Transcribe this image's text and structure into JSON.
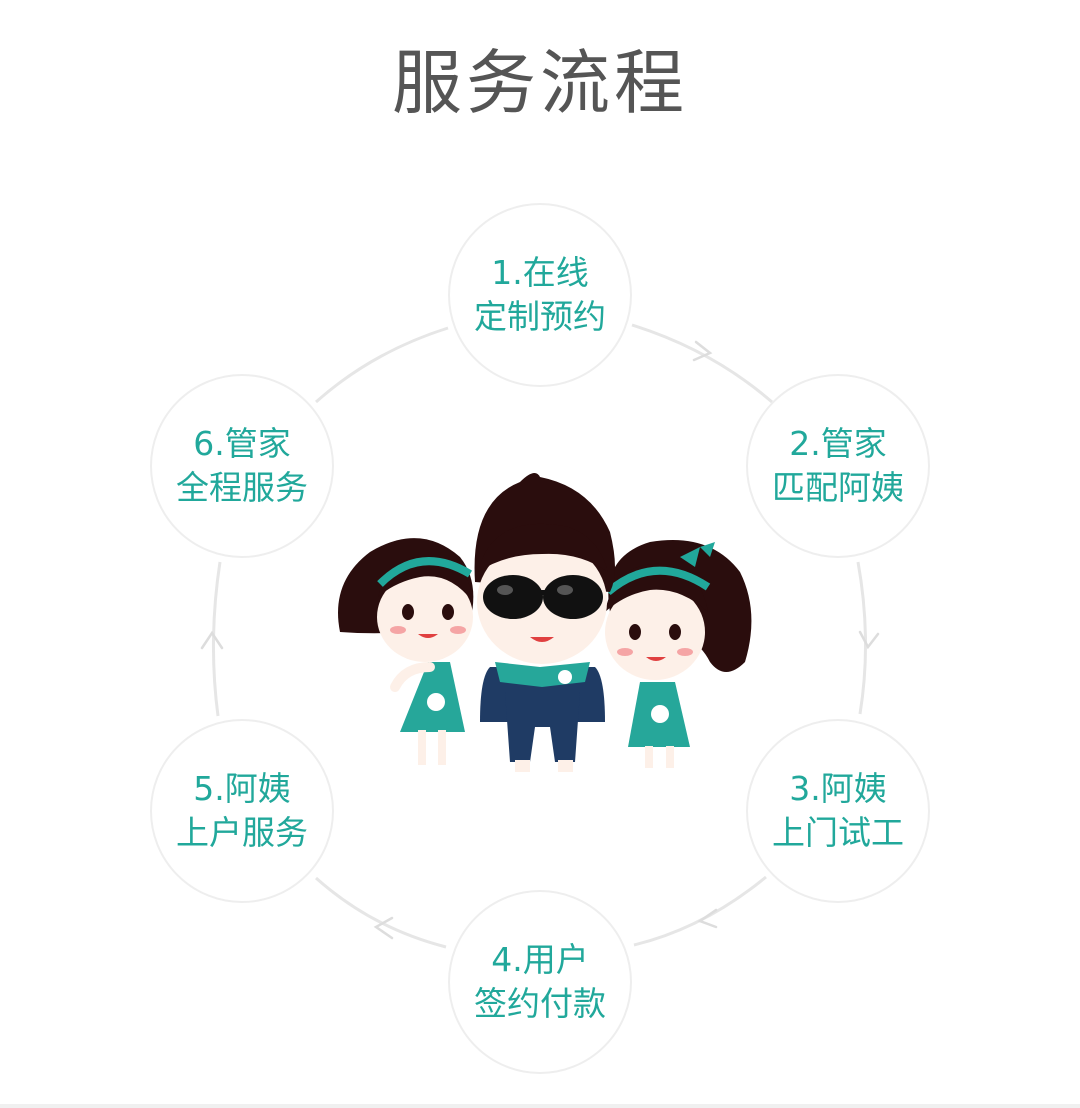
{
  "title": "服务流程",
  "steps": [
    {
      "line1": "1.在线",
      "line2": "定制预约"
    },
    {
      "line1": "2.管家",
      "line2": "匹配阿姨"
    },
    {
      "line1": "3.阿姨",
      "line2": "上门试工"
    },
    {
      "line1": "4.用户",
      "line2": "签约付款"
    },
    {
      "line1": "5.阿姨",
      "line2": "上户服务"
    },
    {
      "line1": "6.管家",
      "line2": "全程服务"
    }
  ],
  "colors": {
    "accent": "#21a89b",
    "title": "#555555",
    "ring": "#e6e6e6"
  },
  "mascot_icon": "three-housekeeping-mascots"
}
